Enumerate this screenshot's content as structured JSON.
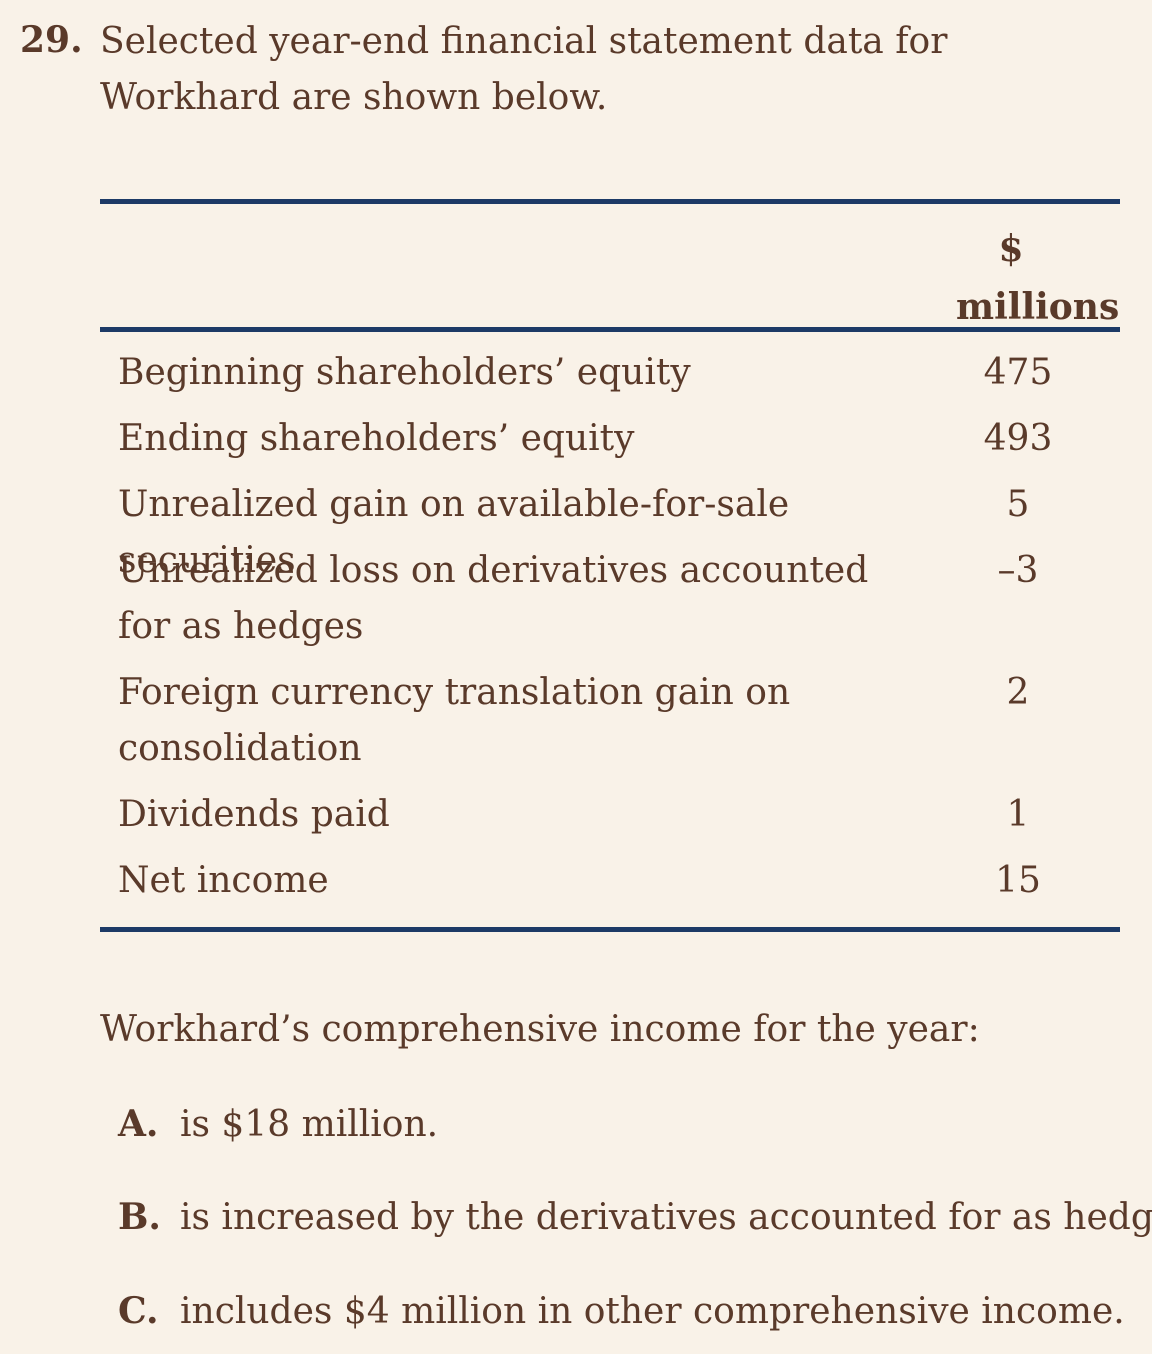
{
  "question": {
    "number": "29.",
    "stem": "Selected year-end financial statement data for Workhard are shown below."
  },
  "table": {
    "column_header": "$ millions",
    "rows": [
      {
        "label": "Beginning shareholders’ equity",
        "value": "475"
      },
      {
        "label": "Ending shareholders’ equity",
        "value": "493"
      },
      {
        "label": "Unrealized gain on available-for-sale securities",
        "value": "5"
      },
      {
        "label": "Unrealized loss on derivatives accounted for as hedges",
        "value": "–3"
      },
      {
        "label": "Foreign currency translation gain on consolidation",
        "value": "2"
      },
      {
        "label": "Dividends paid",
        "value": "1"
      },
      {
        "label": "Net income",
        "value": "15"
      }
    ]
  },
  "prompt": "Workhard’s comprehensive income for the year:",
  "options": [
    {
      "letter": "A.",
      "text": "is $18 million."
    },
    {
      "letter": "B.",
      "text": "is increased by the derivatives accounted for as hedges."
    },
    {
      "letter": "C.",
      "text": "includes $4 million in other comprehensive income."
    }
  ]
}
